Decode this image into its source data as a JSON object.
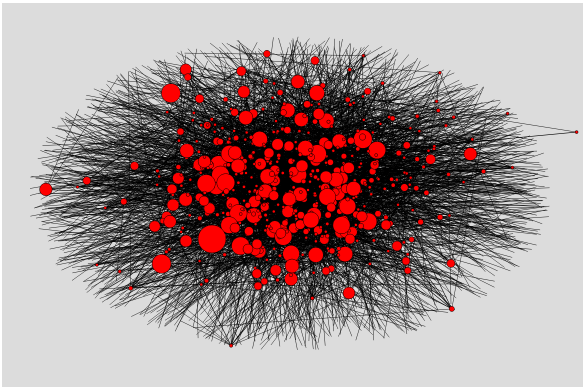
{
  "figure": {
    "type": "network-graph",
    "background_color": "#dcdcdc",
    "node_color": "#ff0000",
    "node_stroke_color": "#000000",
    "edge_color": "#000000",
    "labels_visible": false
  }
}
